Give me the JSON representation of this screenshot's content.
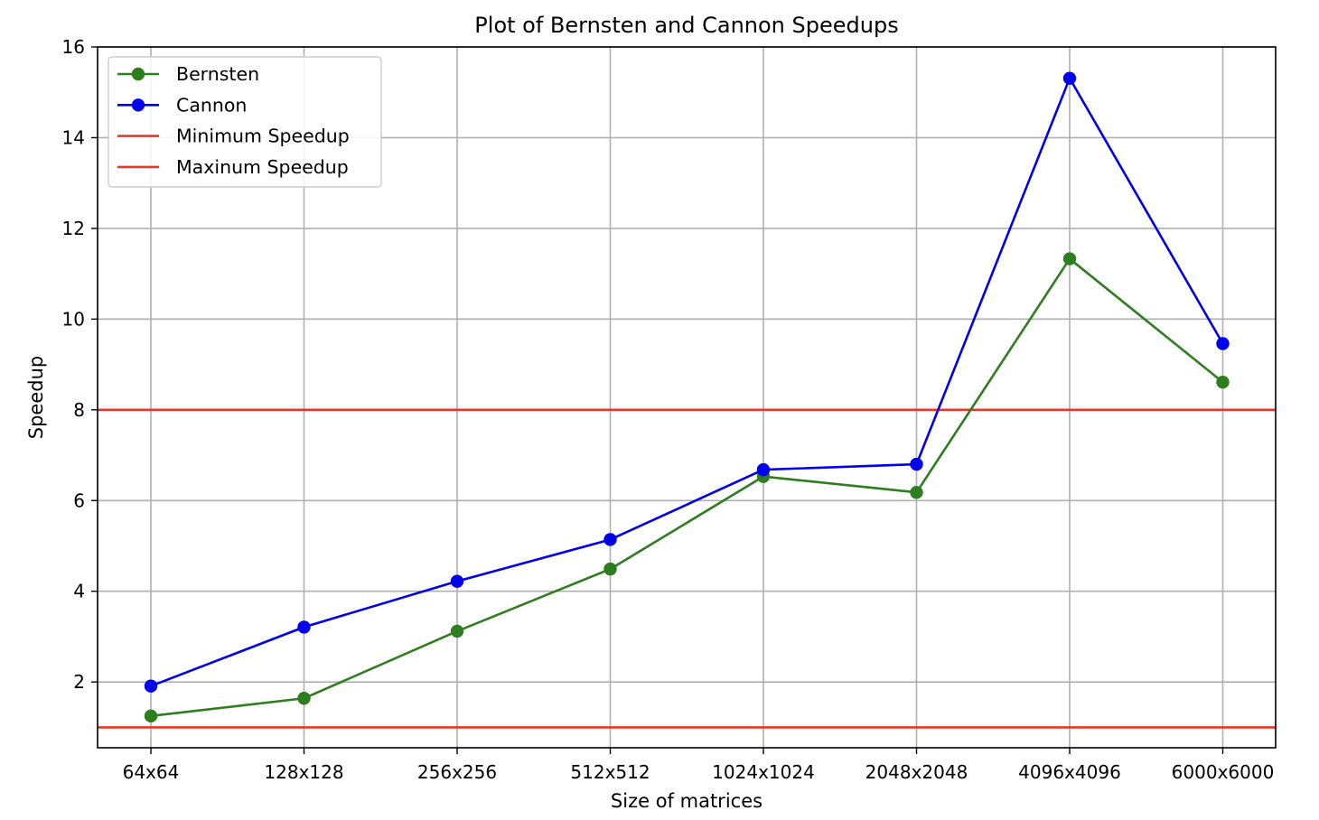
{
  "chart_data": {
    "type": "line",
    "title": "Plot of Bernsten and Cannon Speedups",
    "xlabel": "Size of matrices",
    "ylabel": "Speedup",
    "categories": [
      "64x64",
      "128x128",
      "256x256",
      "512x512",
      "1024x1024",
      "2048x2048",
      "4096x4096",
      "6000x6000"
    ],
    "ylim": [
      0.55,
      16.0
    ],
    "yticks": [
      2,
      4,
      6,
      8,
      10,
      12,
      14,
      16
    ],
    "grid": true,
    "legend_position": "top-left",
    "series": [
      {
        "name": "Bernsten",
        "color": "#2e7d1f",
        "marker": "circle",
        "values": [
          1.25,
          1.64,
          3.12,
          4.49,
          6.53,
          6.18,
          11.33,
          8.61
        ]
      },
      {
        "name": "Cannon",
        "color": "#0000ee",
        "marker": "circle",
        "values": [
          1.91,
          3.21,
          4.22,
          5.14,
          6.68,
          6.8,
          15.31,
          9.46
        ]
      }
    ],
    "reference_lines": [
      {
        "name": "Minimum Speedup",
        "color": "#e8362a",
        "y": 1
      },
      {
        "name": "Maxinum Speedup",
        "color": "#e8362a",
        "y": 8
      }
    ]
  }
}
